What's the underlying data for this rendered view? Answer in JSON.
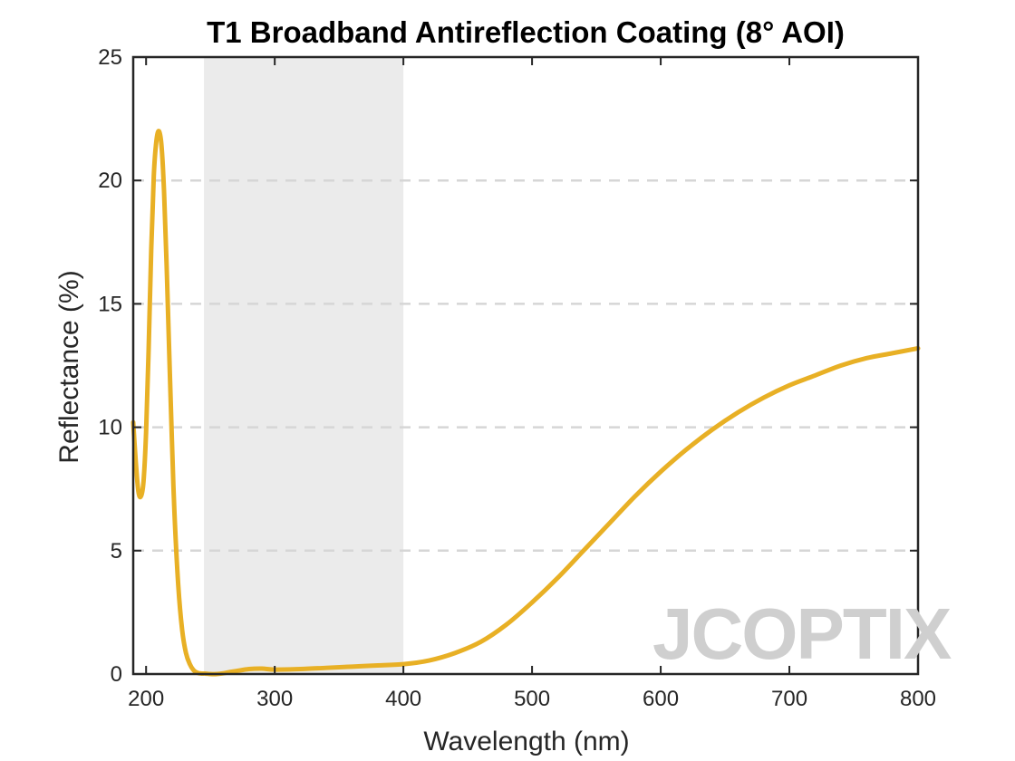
{
  "chart_data": {
    "type": "line",
    "title": "T1 Broadband Antireflection Coating (8° AOI)",
    "xlabel": "Wavelength (nm)",
    "ylabel": "Reflectance (%)",
    "xlim": [
      190,
      800
    ],
    "ylim": [
      0,
      25
    ],
    "xticks": [
      200,
      300,
      400,
      500,
      600,
      700,
      800
    ],
    "yticks": [
      0,
      5,
      10,
      15,
      20,
      25
    ],
    "grid": "horizontal-dashed",
    "shaded_band": {
      "x_start": 245,
      "x_end": 400,
      "color": "#ebebeb"
    },
    "series": [
      {
        "color": "#e8b025",
        "x": [
          190,
          192,
          194,
          196,
          198,
          200,
          202,
          204,
          206,
          208,
          210,
          212,
          214,
          216,
          218,
          220,
          222,
          225,
          228,
          231,
          234,
          237,
          240,
          243,
          246,
          250,
          255,
          260,
          265,
          270,
          280,
          290,
          300,
          320,
          340,
          360,
          380,
          400,
          420,
          440,
          460,
          480,
          500,
          520,
          540,
          560,
          580,
          600,
          620,
          640,
          660,
          680,
          700,
          720,
          740,
          760,
          780,
          800
        ],
        "y": [
          10.2,
          8.6,
          7.4,
          7.2,
          7.8,
          9.8,
          13.2,
          17.2,
          20.2,
          21.6,
          22.0,
          21.4,
          19.5,
          16.5,
          13.0,
          9.6,
          6.6,
          3.6,
          1.8,
          0.85,
          0.4,
          0.15,
          0.05,
          0.02,
          0.02,
          0.0,
          0.0,
          0.03,
          0.08,
          0.12,
          0.2,
          0.22,
          0.18,
          0.2,
          0.25,
          0.3,
          0.35,
          0.4,
          0.55,
          0.85,
          1.3,
          2.0,
          2.9,
          3.9,
          5.0,
          6.1,
          7.2,
          8.2,
          9.1,
          9.9,
          10.6,
          11.2,
          11.7,
          12.1,
          12.5,
          12.8,
          13.0,
          13.2
        ]
      }
    ]
  },
  "logo": {
    "name": "JCOPTIX",
    "accent_color": "#f6c9a6",
    "text_color": "#cfcfcf"
  }
}
